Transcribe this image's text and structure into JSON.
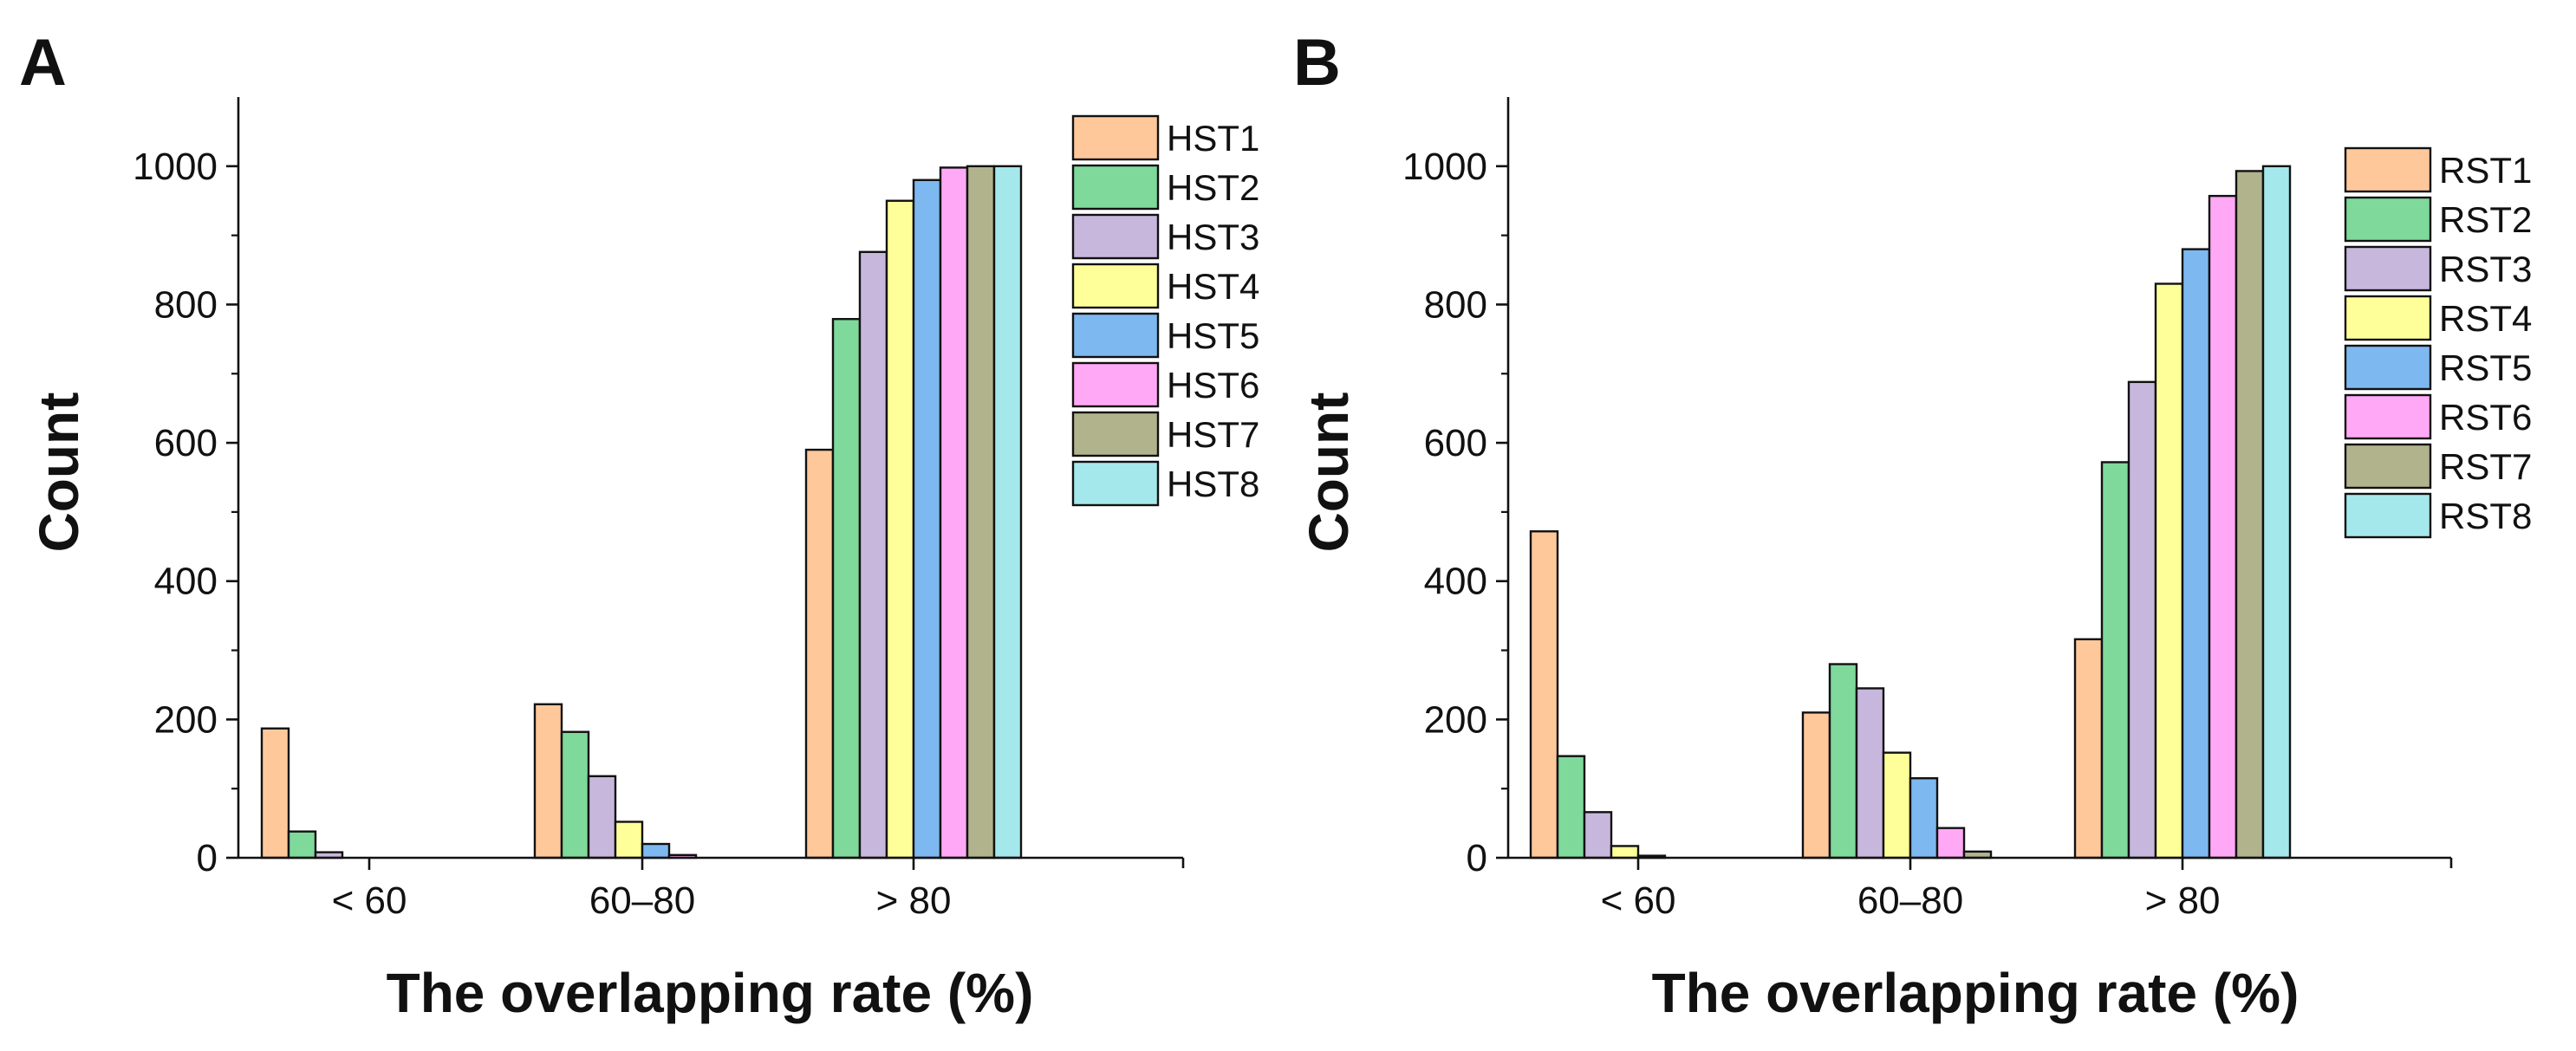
{
  "chart_data": [
    {
      "panel": "A",
      "type": "bar",
      "title": "",
      "xlabel": "The overlapping rate (%)",
      "ylabel": "Count",
      "ylim": [
        0,
        1100
      ],
      "yticks": [
        0,
        200,
        400,
        600,
        800,
        1000
      ],
      "ytick_labels": [
        "0",
        "200",
        "400",
        "600",
        "800",
        "1000"
      ],
      "categories": [
        "< 60",
        "60–80",
        "> 80"
      ],
      "grid": false,
      "legend_position": "top-right",
      "series": [
        {
          "name": "HST1",
          "color": "#FFC89A",
          "values": [
            187,
            222,
            590
          ]
        },
        {
          "name": "HST2",
          "color": "#7ED99B",
          "values": [
            38,
            182,
            779
          ]
        },
        {
          "name": "HST3",
          "color": "#C8B7DD",
          "values": [
            8,
            118,
            876
          ]
        },
        {
          "name": "HST4",
          "color": "#FFFF99",
          "values": [
            0,
            52,
            950
          ]
        },
        {
          "name": "HST5",
          "color": "#7EB8F0",
          "values": [
            0,
            20,
            980
          ]
        },
        {
          "name": "HST6",
          "color": "#FFA8F5",
          "values": [
            0,
            4,
            998
          ]
        },
        {
          "name": "HST7",
          "color": "#B0B38C",
          "values": [
            0,
            0,
            1000
          ]
        },
        {
          "name": "HST8",
          "color": "#A5E8EC",
          "values": [
            0,
            0,
            1000
          ]
        }
      ]
    },
    {
      "panel": "B",
      "type": "bar",
      "title": "",
      "xlabel": "The overlapping rate (%)",
      "ylabel": "Count",
      "ylim": [
        0,
        1100
      ],
      "yticks": [
        0,
        200,
        400,
        600,
        800,
        1000
      ],
      "ytick_labels": [
        "0",
        "200",
        "400",
        "600",
        "800",
        "1000"
      ],
      "categories": [
        "< 60",
        "60–80",
        "> 80"
      ],
      "grid": false,
      "legend_position": "top-right",
      "series": [
        {
          "name": "RST1",
          "color": "#FFC89A",
          "values": [
            472,
            210,
            316
          ]
        },
        {
          "name": "RST2",
          "color": "#7ED99B",
          "values": [
            147,
            280,
            572
          ]
        },
        {
          "name": "RST3",
          "color": "#C8B7DD",
          "values": [
            66,
            245,
            688
          ]
        },
        {
          "name": "RST4",
          "color": "#FFFF99",
          "values": [
            17,
            152,
            830
          ]
        },
        {
          "name": "RST5",
          "color": "#7EB8F0",
          "values": [
            3,
            115,
            880
          ]
        },
        {
          "name": "RST6",
          "color": "#FFA8F5",
          "values": [
            0,
            43,
            957
          ]
        },
        {
          "name": "RST7",
          "color": "#B0B38C",
          "values": [
            0,
            9,
            993
          ]
        },
        {
          "name": "RST8",
          "color": "#A5E8EC",
          "values": [
            0,
            0,
            1000
          ]
        }
      ]
    }
  ]
}
